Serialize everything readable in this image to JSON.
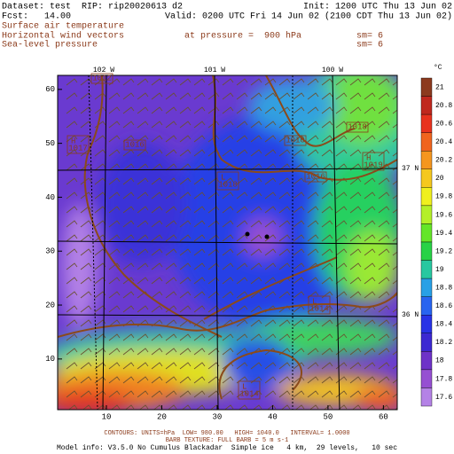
{
  "header": {
    "dataset": "Dataset: test  RIP: rip20020613 d2",
    "init": "Init: 1200 UTC Thu 13 Jun 02",
    "fcst": "Fcst:   14.00",
    "valid": "Valid: 0200 UTC Fri 14 Jun 02 (2100 CDT Thu 13 Jun 02)",
    "field1": "Surface air temperature",
    "field2": "Horizontal wind vectors",
    "field2_level": "at pressure =  900 hPa",
    "field2_sm": "sm= 6",
    "field3": "Sea-level pressure",
    "field3_sm": "sm= 6"
  },
  "map": {
    "xlim": [
      1.2,
      62.5
    ],
    "ylim": [
      0.6,
      62.6
    ],
    "xticks": [
      10,
      20,
      30,
      40,
      50,
      60
    ],
    "yticks": [
      10,
      20,
      30,
      40,
      50,
      60
    ],
    "lon_labels": [
      "102 W",
      "101 W",
      "100 W"
    ],
    "lat_labels": [
      "37 N",
      "36 N"
    ],
    "pressure_labels": [
      {
        "value": 1012
      },
      {
        "letter": "H",
        "value": 1017
      },
      {
        "value": 1016
      },
      {
        "value": 1016
      },
      {
        "value": 1018
      },
      {
        "letter": "H",
        "value": 1019
      },
      {
        "value": 1016
      },
      {
        "letter": "L",
        "value": 1018
      },
      {
        "letter": "L",
        "value": 1014
      },
      {
        "letter": "L",
        "value": 1014
      }
    ]
  },
  "colorbar": {
    "unit": "°C",
    "levels": [
      21,
      20.8,
      20.6,
      20.4,
      20.2,
      20,
      19.8,
      19.6,
      19.4,
      19.2,
      19,
      18.8,
      18.6,
      18.4,
      18.2,
      18,
      17.8,
      17.6
    ],
    "colors": [
      "#8c3a1e",
      "#c0281e",
      "#e8321e",
      "#f0641e",
      "#f5961e",
      "#f5c81e",
      "#f0f01e",
      "#b4f028",
      "#64e628",
      "#28d246",
      "#28c8a0",
      "#28a0e6",
      "#2864f0",
      "#2832e6",
      "#3c28d2",
      "#6e32c8",
      "#9650d2",
      "#b482e6"
    ]
  },
  "footer": {
    "contours": "CONTOURS: UNITS=hPa  LOW= 980.00   HIGH= 1040.0   INTERVAL= 1.0000",
    "barbs": "BARB TEXTURE: FULL BARB = 5 m s-1",
    "model": "Model info: V3.5.0 No Cumulus Blackadar  Simple ice   4 km,  29 levels,   10 sec"
  }
}
